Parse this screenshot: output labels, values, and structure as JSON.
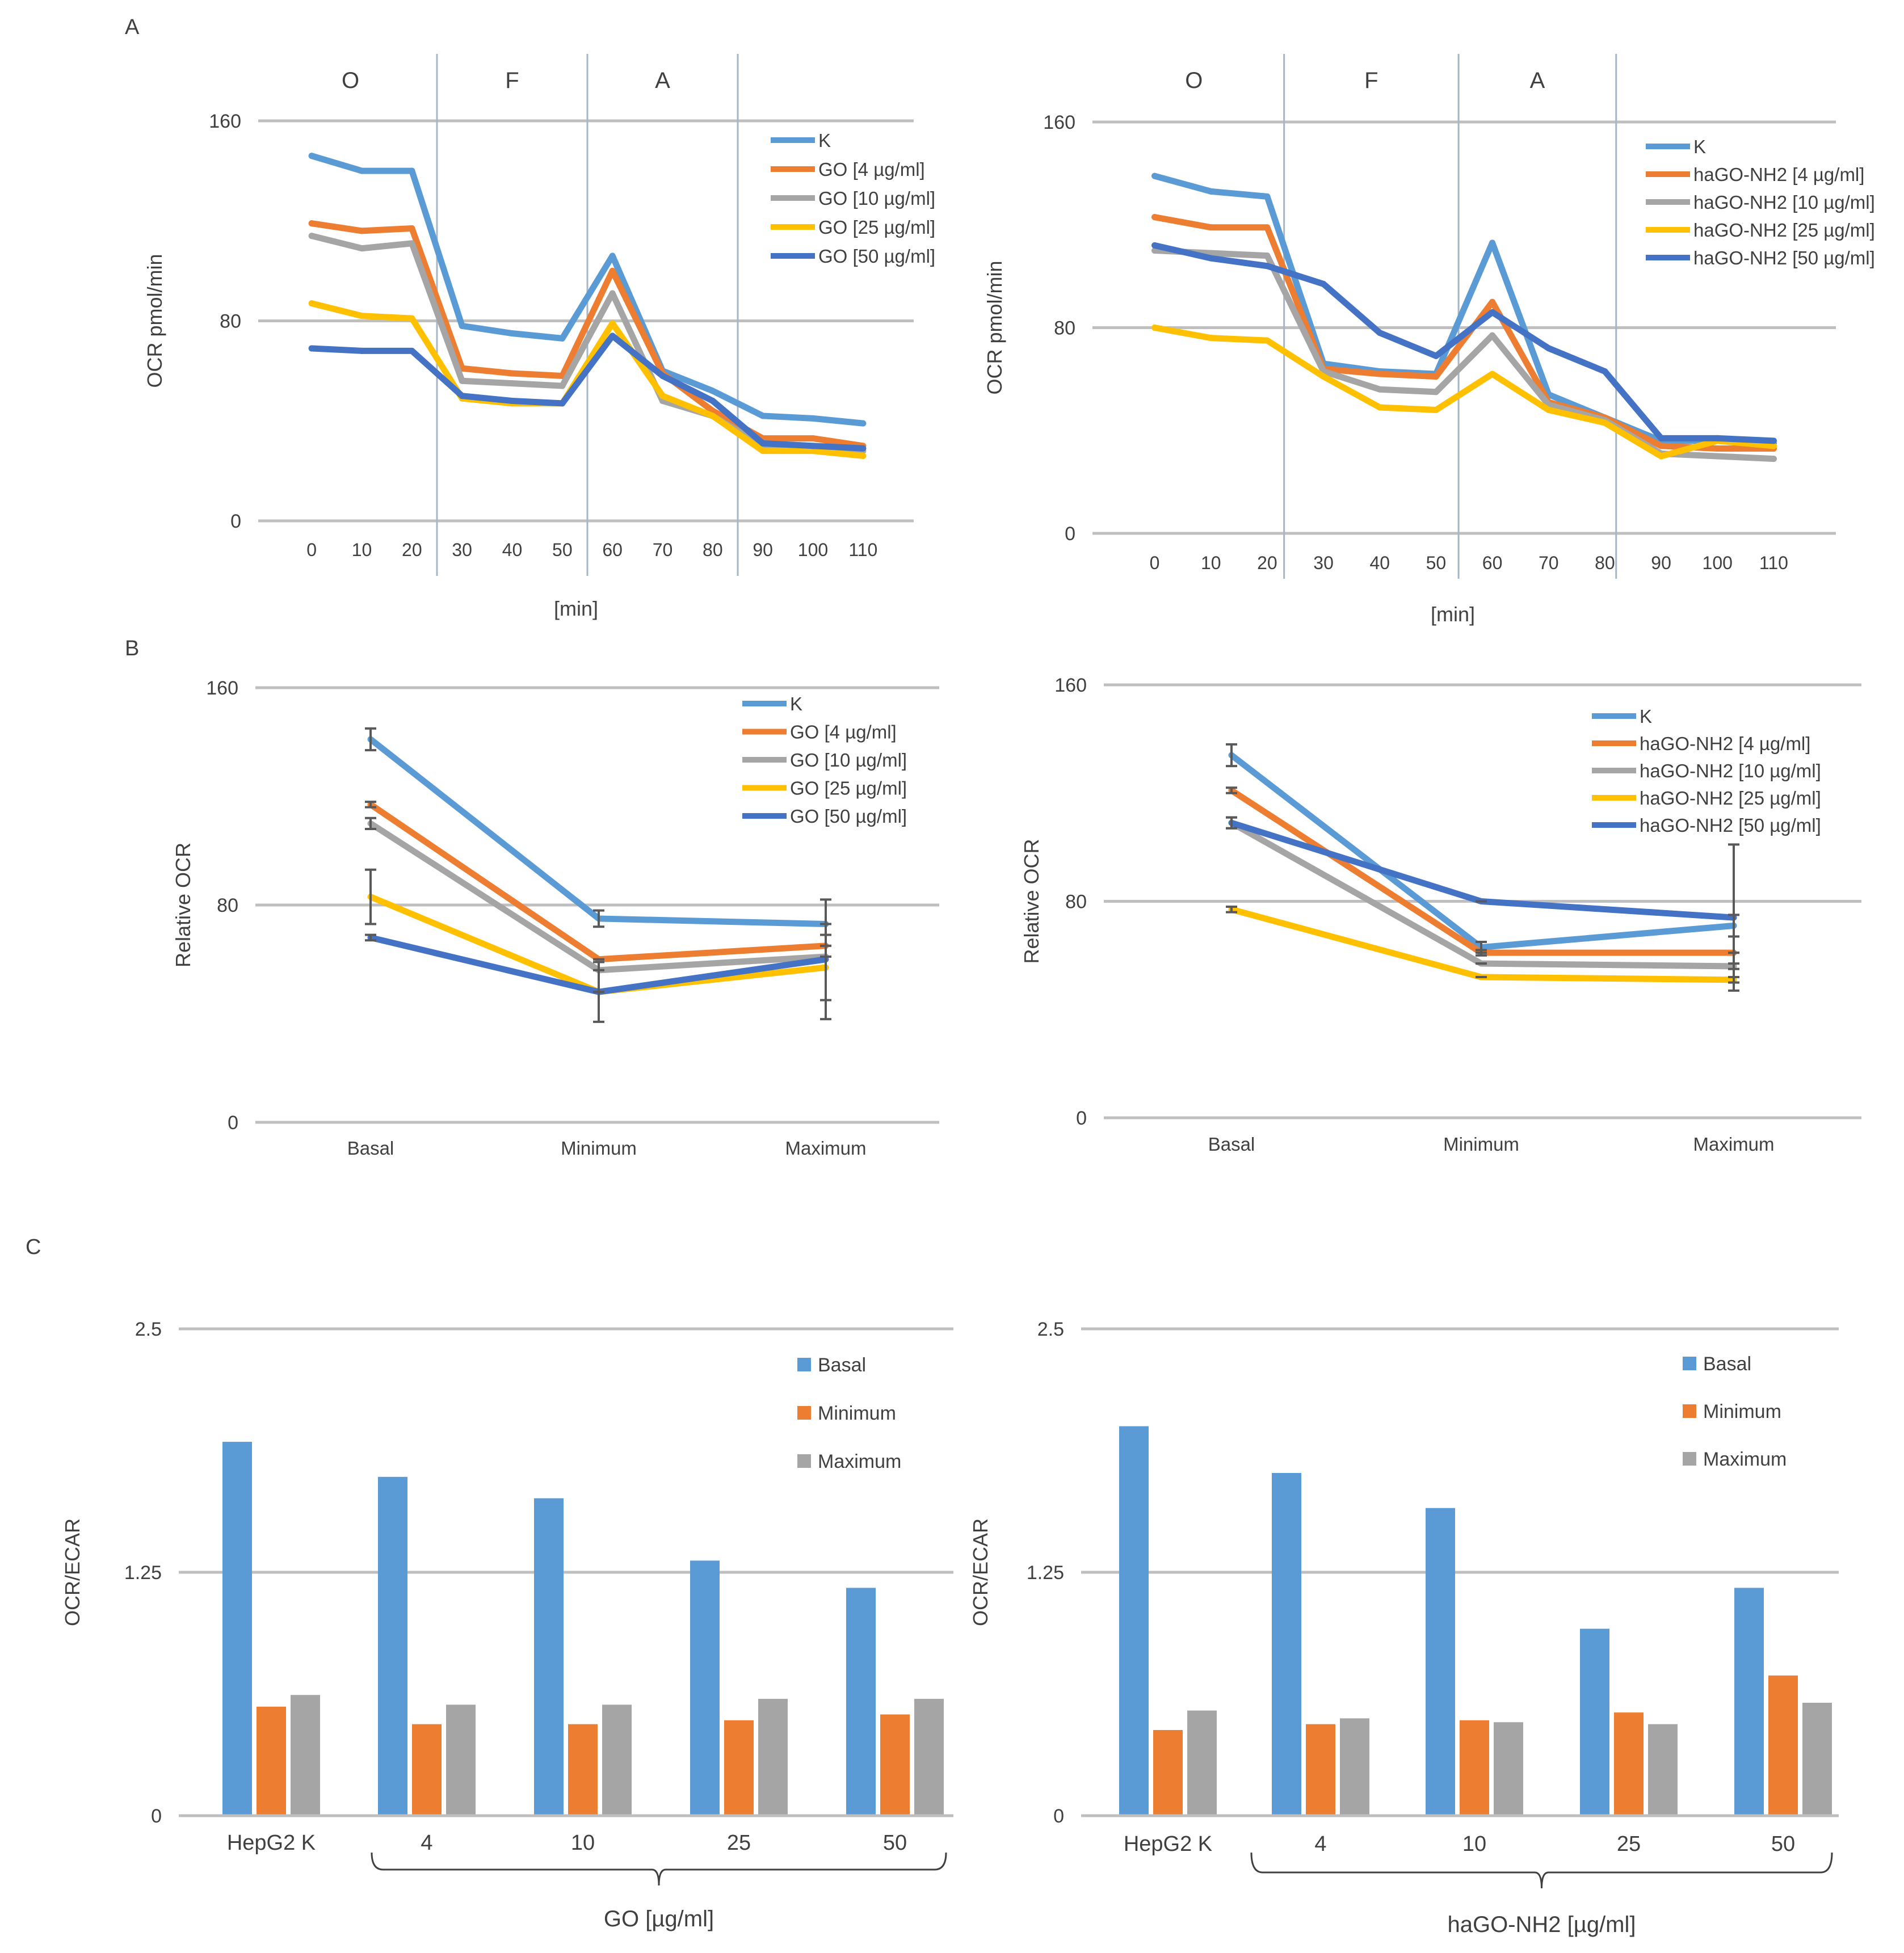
{
  "figure_labels": {
    "a": "A",
    "b": "B",
    "c": "C"
  },
  "colors": {
    "K": "#5b9bd5",
    "c4": "#ed7d31",
    "c10": "#a5a5a5",
    "c25": "#ffc000",
    "c50": "#4472c4",
    "grid": "#bfbfbf",
    "phase_line": "#a6b6c6",
    "text": "#404040",
    "errorbar": "#595959"
  },
  "chart_data": [
    {
      "id": "A1",
      "type": "line",
      "title": "",
      "xlabel": "[min]",
      "ylabel": "OCR pmol/min",
      "ylim": [
        0,
        160
      ],
      "yticks": [
        0,
        80,
        160
      ],
      "x": [
        0,
        10,
        20,
        30,
        40,
        50,
        60,
        70,
        80,
        90,
        100,
        110
      ],
      "phases": [
        {
          "label": "O",
          "start": -10,
          "end": 25
        },
        {
          "label": "F",
          "start": 25,
          "end": 55
        },
        {
          "label": "A",
          "start": 55,
          "end": 85
        }
      ],
      "legend_position": "top-right",
      "series": [
        {
          "name": "K",
          "color_key": "K",
          "values": [
            146,
            140,
            140,
            78,
            75,
            73,
            106,
            60,
            52,
            42,
            41,
            39
          ]
        },
        {
          "name": "GO [4 µg/ml]",
          "color_key": "c4",
          "values": [
            119,
            116,
            117,
            61,
            59,
            58,
            100,
            59,
            44,
            33,
            33,
            30
          ]
        },
        {
          "name": "GO [10 µg/ml]",
          "color_key": "c10",
          "values": [
            114,
            109,
            111,
            56,
            55,
            54,
            91,
            48,
            42,
            30,
            30,
            28
          ]
        },
        {
          "name": "GO [25 µg/ml]",
          "color_key": "c25",
          "values": [
            87,
            82,
            81,
            49,
            47,
            47,
            79,
            50,
            42,
            28,
            28,
            26
          ]
        },
        {
          "name": "GO [50 µg/ml]",
          "color_key": "c50",
          "values": [
            69,
            68,
            68,
            50,
            48,
            47,
            74,
            58,
            48,
            31,
            30,
            29
          ]
        }
      ]
    },
    {
      "id": "A2",
      "type": "line",
      "title": "",
      "xlabel": "[min]",
      "ylabel": "OCR pmol/min",
      "ylim": [
        0,
        160
      ],
      "yticks": [
        0,
        80,
        160
      ],
      "x": [
        0,
        10,
        20,
        30,
        40,
        50,
        60,
        70,
        80,
        90,
        100,
        110
      ],
      "phases": [
        {
          "label": "O",
          "start": -10,
          "end": 23
        },
        {
          "label": "F",
          "start": 23,
          "end": 54
        },
        {
          "label": "A",
          "start": 54,
          "end": 82
        }
      ],
      "legend_position": "top-right",
      "series": [
        {
          "name": "K",
          "color_key": "K",
          "values": [
            139,
            133,
            131,
            66,
            63,
            62,
            113,
            54,
            45,
            36,
            36,
            35
          ]
        },
        {
          "name": "haGO-NH2 [4 µg/ml]",
          "color_key": "c4",
          "values": [
            123,
            119,
            119,
            64,
            62,
            61,
            90,
            51,
            45,
            34,
            33,
            33
          ]
        },
        {
          "name": "haGO-NH2 [10 µg/ml]",
          "color_key": "c10",
          "values": [
            110,
            109,
            108,
            63,
            56,
            55,
            77,
            50,
            44,
            31,
            30,
            29
          ]
        },
        {
          "name": "haGO-NH2 [25 µg/ml]",
          "color_key": "c25",
          "values": [
            80,
            76,
            75,
            61,
            49,
            48,
            62,
            48,
            43,
            30,
            36,
            34
          ]
        },
        {
          "name": "haGO-NH2 [50 µg/ml]",
          "color_key": "c50",
          "values": [
            112,
            107,
            104,
            97,
            78,
            69,
            86,
            72,
            63,
            37,
            37,
            36
          ]
        }
      ]
    },
    {
      "id": "B1",
      "type": "line",
      "title": "",
      "xlabel": "",
      "ylabel": "Relative OCR",
      "ylim": [
        0,
        160
      ],
      "yticks": [
        0,
        80,
        160
      ],
      "categories": [
        "Basal",
        "Minimum",
        "Maximum"
      ],
      "legend_position": "top-right",
      "series": [
        {
          "name": "K",
          "color_key": "K",
          "values": [
            141,
            75,
            73
          ],
          "errors": [
            4,
            3,
            0
          ]
        },
        {
          "name": "GO [4 µg/ml]",
          "color_key": "c4",
          "values": [
            117,
            60,
            65
          ],
          "errors": [
            1,
            0,
            0
          ]
        },
        {
          "name": "GO [10 µg/ml]",
          "color_key": "c10",
          "values": [
            110,
            56,
            61
          ],
          "errors": [
            2,
            0,
            0
          ]
        },
        {
          "name": "GO [25 µg/ml]",
          "color_key": "c25",
          "values": [
            83,
            48,
            57
          ],
          "errors": [
            10,
            0,
            12
          ]
        },
        {
          "name": "GO [50 µg/ml]",
          "color_key": "c50",
          "values": [
            68,
            48,
            60
          ],
          "errors": [
            1,
            11,
            22
          ]
        }
      ]
    },
    {
      "id": "B2",
      "type": "line",
      "title": "",
      "xlabel": "",
      "ylabel": "Relative OCR",
      "ylim": [
        0,
        160
      ],
      "yticks": [
        0,
        80,
        160
      ],
      "categories": [
        "Basal",
        "Minimum",
        "Maximum"
      ],
      "legend_position": "top-right",
      "series": [
        {
          "name": "K",
          "color_key": "K",
          "values": [
            134,
            63,
            71
          ],
          "errors": [
            4,
            2,
            4
          ]
        },
        {
          "name": "haGO-NH2 [4 µg/ml]",
          "color_key": "c4",
          "values": [
            121,
            61,
            61
          ],
          "errors": [
            1,
            1,
            0
          ]
        },
        {
          "name": "haGO-NH2 [10 µg/ml]",
          "color_key": "c10",
          "values": [
            109,
            57,
            56
          ],
          "errors": [
            2,
            0,
            1
          ]
        },
        {
          "name": "haGO-NH2 [25 µg/ml]",
          "color_key": "c25",
          "values": [
            77,
            52,
            51
          ],
          "errors": [
            1,
            0,
            1
          ]
        },
        {
          "name": "haGO-NH2 [50 µg/ml]",
          "color_key": "c50",
          "values": [
            109,
            80,
            74
          ],
          "errors": [
            2,
            0,
            27
          ]
        }
      ]
    },
    {
      "id": "C1",
      "type": "bar",
      "title": "",
      "xlabel": "GO [µg/ml]",
      "ylabel": "OCR/ECAR",
      "ylim": [
        0,
        2.5
      ],
      "yticks": [
        0,
        1.25,
        2.5
      ],
      "ytick_labels": [
        "0",
        "1.25",
        "2.5"
      ],
      "categories": [
        "HepG2 K",
        "4",
        "10",
        "25",
        "50"
      ],
      "legend_position": "top-right",
      "series": [
        {
          "name": "Basal",
          "color_key": "K",
          "values": [
            1.92,
            1.74,
            1.63,
            1.31,
            1.17
          ]
        },
        {
          "name": "Minimum",
          "color_key": "c4",
          "values": [
            0.56,
            0.47,
            0.47,
            0.49,
            0.52
          ]
        },
        {
          "name": "Maximum",
          "color_key": "c10",
          "values": [
            0.62,
            0.57,
            0.57,
            0.6,
            0.6
          ]
        }
      ]
    },
    {
      "id": "C2",
      "type": "bar",
      "title": "",
      "xlabel": "haGO-NH2 [µg/ml]",
      "ylabel": "OCR/ECAR",
      "ylim": [
        0,
        2.5
      ],
      "yticks": [
        0,
        1.25,
        2.5
      ],
      "ytick_labels": [
        "0",
        "1.25",
        "2.5"
      ],
      "categories": [
        "HepG2 K",
        "4",
        "10",
        "25",
        "50"
      ],
      "legend_position": "top-right",
      "series": [
        {
          "name": "Basal",
          "color_key": "K",
          "values": [
            2.0,
            1.76,
            1.58,
            0.96,
            1.17
          ]
        },
        {
          "name": "Minimum",
          "color_key": "c4",
          "values": [
            0.44,
            0.47,
            0.49,
            0.53,
            0.72
          ]
        },
        {
          "name": "Maximum",
          "color_key": "c10",
          "values": [
            0.54,
            0.5,
            0.48,
            0.47,
            0.58
          ]
        }
      ]
    }
  ]
}
